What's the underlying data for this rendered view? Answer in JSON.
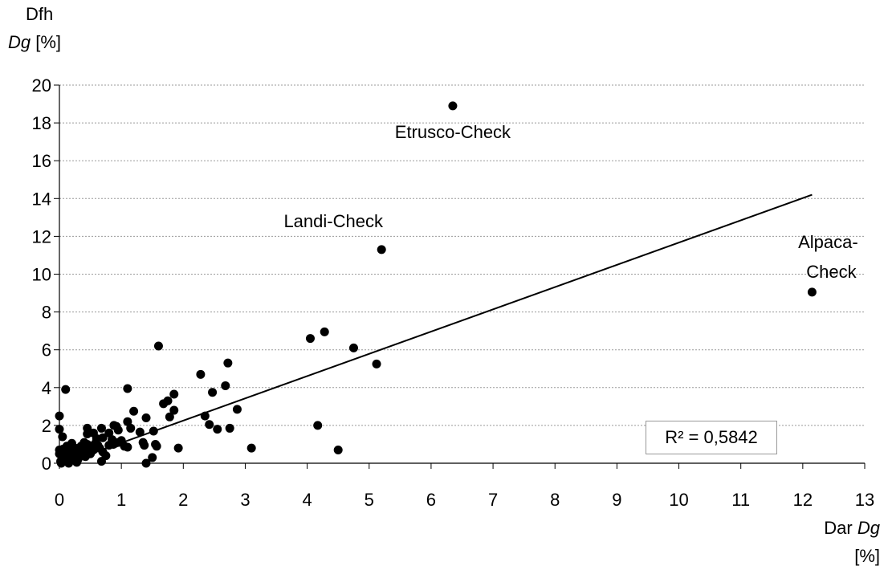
{
  "chart_data": {
    "type": "scatter",
    "title": "",
    "ylabel": {
      "prefix": "Dfh",
      "italic": "Dg",
      "unit": "[%]"
    },
    "xlabel": {
      "prefix": "Dar",
      "italic": "Dg",
      "unit": "[%]"
    },
    "xlim": [
      0,
      13
    ],
    "ylim": [
      0,
      20
    ],
    "xticks": [
      0,
      1,
      2,
      3,
      4,
      5,
      6,
      7,
      8,
      9,
      10,
      11,
      12,
      13
    ],
    "yticks": [
      0,
      2,
      4,
      6,
      8,
      10,
      12,
      14,
      16,
      18,
      20
    ],
    "grid": "horizontal dotted",
    "trendline": {
      "type": "linear",
      "x": [
        0,
        12.15
      ],
      "y": [
        -0.1,
        14.2
      ],
      "r2_label": "R² = 0,5842"
    },
    "annotations": [
      {
        "text": "Etrusco-Check",
        "x": 6.35,
        "y": 18.9
      },
      {
        "text": "Landi-Check",
        "x": 5.2,
        "y": 11.3
      },
      {
        "text": "Alpaca-",
        "x": 12.15,
        "y": 9.05
      },
      {
        "text": "Check",
        "x": 12.15,
        "y": 9.05
      }
    ],
    "points": [
      [
        6.35,
        18.9
      ],
      [
        5.2,
        11.3
      ],
      [
        12.15,
        9.05
      ],
      [
        1.6,
        6.2
      ],
      [
        4.05,
        6.6
      ],
      [
        4.28,
        6.95
      ],
      [
        4.75,
        6.1
      ],
      [
        5.12,
        5.25
      ],
      [
        2.72,
        5.3
      ],
      [
        2.28,
        4.7
      ],
      [
        2.68,
        4.1
      ],
      [
        2.47,
        3.75
      ],
      [
        1.85,
        3.65
      ],
      [
        1.75,
        3.3
      ],
      [
        1.68,
        3.15
      ],
      [
        1.1,
        3.95
      ],
      [
        0.1,
        3.9
      ],
      [
        0.0,
        2.5
      ],
      [
        1.85,
        2.8
      ],
      [
        2.87,
        2.85
      ],
      [
        2.35,
        2.5
      ],
      [
        1.78,
        2.45
      ],
      [
        1.4,
        2.4
      ],
      [
        1.2,
        2.75
      ],
      [
        1.1,
        2.2
      ],
      [
        1.15,
        1.85
      ],
      [
        1.3,
        1.65
      ],
      [
        1.52,
        1.7
      ],
      [
        2.42,
        2.05
      ],
      [
        4.17,
        2.0
      ],
      [
        2.55,
        1.8
      ],
      [
        2.75,
        1.85
      ],
      [
        1.92,
        0.8
      ],
      [
        3.1,
        0.8
      ],
      [
        4.5,
        0.7
      ],
      [
        1.5,
        0.3
      ],
      [
        1.4,
        0.0
      ],
      [
        0.0,
        1.8
      ],
      [
        0.05,
        1.4
      ],
      [
        0.45,
        1.85
      ],
      [
        0.68,
        1.85
      ],
      [
        0.88,
        2.0
      ],
      [
        0.92,
        1.95
      ],
      [
        0.95,
        1.75
      ],
      [
        0.8,
        1.6
      ],
      [
        0.55,
        1.6
      ],
      [
        0.45,
        1.55
      ],
      [
        0.6,
        1.3
      ],
      [
        0.7,
        1.35
      ],
      [
        0.85,
        1.25
      ],
      [
        0.95,
        1.1
      ],
      [
        1.0,
        1.2
      ],
      [
        1.05,
        0.9
      ],
      [
        1.1,
        0.85
      ],
      [
        1.35,
        1.1
      ],
      [
        1.37,
        0.95
      ],
      [
        1.55,
        1.0
      ],
      [
        1.57,
        0.9
      ],
      [
        0.65,
        0.8
      ],
      [
        0.7,
        0.6
      ],
      [
        0.75,
        0.4
      ],
      [
        0.68,
        0.1
      ],
      [
        0.55,
        0.7
      ],
      [
        0.5,
        0.9
      ],
      [
        0.45,
        1.0
      ],
      [
        0.4,
        1.1
      ],
      [
        0.35,
        0.9
      ],
      [
        0.3,
        0.5
      ],
      [
        0.25,
        0.3
      ],
      [
        0.3,
        0.2
      ],
      [
        0.35,
        0.4
      ],
      [
        0.4,
        0.6
      ],
      [
        0.2,
        1.05
      ],
      [
        0.15,
        0.8
      ],
      [
        0.12,
        0.9
      ],
      [
        0.1,
        0.6
      ],
      [
        0.08,
        0.4
      ],
      [
        0.05,
        0.3
      ],
      [
        0.02,
        0.1
      ],
      [
        0.0,
        0.5
      ],
      [
        0.0,
        0.7
      ],
      [
        0.03,
        0.0
      ],
      [
        0.1,
        0.1
      ],
      [
        0.15,
        0.0
      ],
      [
        0.18,
        0.2
      ],
      [
        0.2,
        0.4
      ],
      [
        0.22,
        0.6
      ],
      [
        0.25,
        0.8
      ],
      [
        0.28,
        0.05
      ],
      [
        0.12,
        0.3
      ],
      [
        0.17,
        0.55
      ],
      [
        0.06,
        0.75
      ],
      [
        0.5,
        0.5
      ],
      [
        0.58,
        1.05
      ],
      [
        0.62,
        0.95
      ],
      [
        0.8,
        0.95
      ],
      [
        0.87,
        1.0
      ],
      [
        0.9,
        1.05
      ],
      [
        0.35,
        0.7
      ],
      [
        0.42,
        0.35
      ],
      [
        0.26,
        0.15
      ],
      [
        0.14,
        0.2
      ]
    ]
  }
}
